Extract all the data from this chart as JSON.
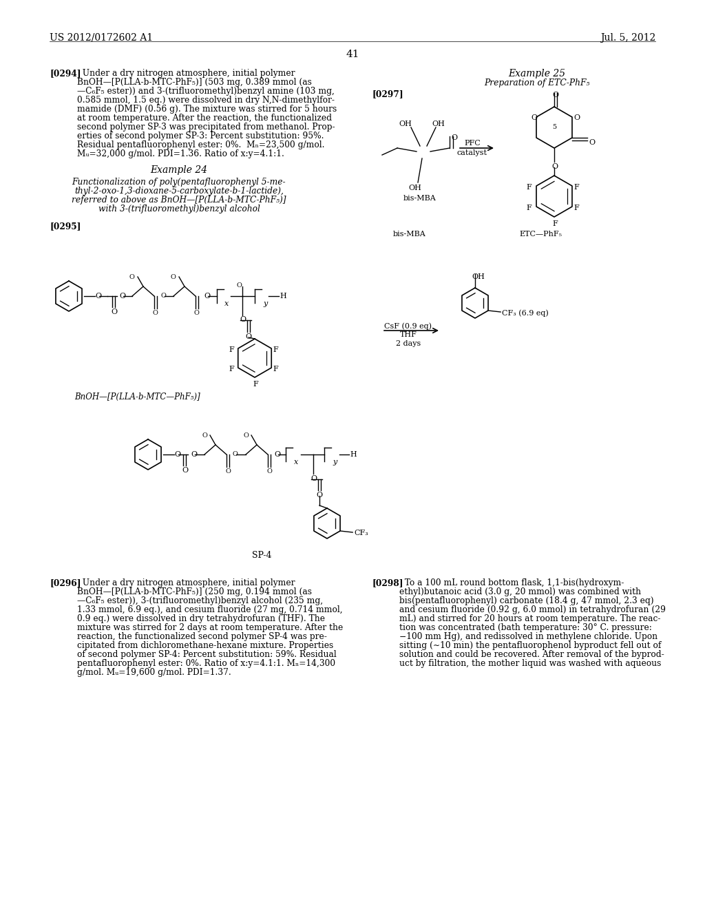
{
  "background_color": "#ffffff",
  "header_left": "US 2012/0172602 A1",
  "header_right": "Jul. 5, 2012",
  "page_number": "41",
  "body_fs": 8.8,
  "header_fs": 10.0
}
